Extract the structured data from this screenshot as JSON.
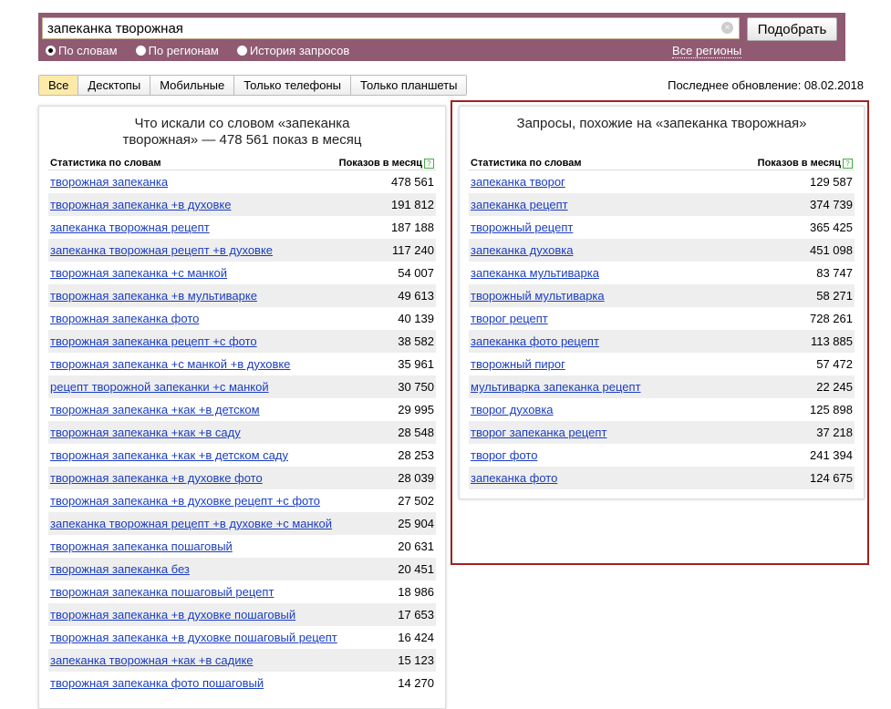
{
  "search": {
    "value": "запеканка творожная",
    "button": "Подобрать",
    "modes": [
      "По словам",
      "По регионам",
      "История запросов"
    ],
    "selected_mode": 0,
    "regions": "Все регионы"
  },
  "tabs": [
    "Все",
    "Десктопы",
    "Мобильные",
    "Только телефоны",
    "Только планшеты"
  ],
  "active_tab": 0,
  "updated": "Последнее обновление: 08.02.2018",
  "left": {
    "title1": "Что искали со словом «запеканка",
    "title2": "творожная» — 478 561 показ в месяц",
    "col1": "Статистика по словам",
    "col2": "Показов в месяц",
    "rows": [
      [
        "творожная запеканка",
        "478 561"
      ],
      [
        "творожная запеканка +в духовке",
        "191 812"
      ],
      [
        "запеканка творожная рецепт",
        "187 188"
      ],
      [
        "запеканка творожная рецепт +в духовке",
        "117 240"
      ],
      [
        "творожная запеканка +с манкой",
        "54 007"
      ],
      [
        "творожная запеканка +в мультиварке",
        "49 613"
      ],
      [
        "творожная запеканка фото",
        "40 139"
      ],
      [
        "творожная запеканка рецепт +с фото",
        "38 582"
      ],
      [
        "творожная запеканка +с манкой +в духовке",
        "35 961"
      ],
      [
        "рецепт творожной запеканки +с манкой",
        "30 750"
      ],
      [
        "творожная запеканка +как +в детском",
        "29 995"
      ],
      [
        "творожная запеканка +как +в саду",
        "28 548"
      ],
      [
        "творожная запеканка +как +в детском саду",
        "28 253"
      ],
      [
        "творожная запеканка +в духовке фото",
        "28 039"
      ],
      [
        "творожная запеканка +в духовке рецепт +с фото",
        "27 502"
      ],
      [
        "запеканка творожная рецепт +в духовке +с манкой",
        "25 904"
      ],
      [
        "творожная запеканка пошаговый",
        "20 631"
      ],
      [
        "творожная запеканка без",
        "20 451"
      ],
      [
        "творожная запеканка пошаговый рецепт",
        "18 986"
      ],
      [
        "творожная запеканка +в духовке пошаговый",
        "17 653"
      ],
      [
        "творожная запеканка +в духовке пошаговый рецепт",
        "16 424"
      ],
      [
        "запеканка творожная +как +в садике",
        "15 123"
      ],
      [
        "творожная запеканка фото пошаговый",
        "14 270"
      ]
    ]
  },
  "right": {
    "title": "Запросы, похожие на «запеканка творожная»",
    "col1": "Статистика по словам",
    "col2": "Показов в месяц",
    "rows": [
      [
        "запеканка творог",
        "129 587"
      ],
      [
        "запеканка рецепт",
        "374 739"
      ],
      [
        "творожный рецепт",
        "365 425"
      ],
      [
        "запеканка духовка",
        "451 098"
      ],
      [
        "запеканка мультиварка",
        "83 747"
      ],
      [
        "творожный мультиварка",
        "58 271"
      ],
      [
        "творог рецепт",
        "728 261"
      ],
      [
        "запеканка фото рецепт",
        "113 885"
      ],
      [
        "творожный пирог",
        "57 472"
      ],
      [
        "мультиварка запеканка рецепт",
        "22 245"
      ],
      [
        "творог духовка",
        "125 898"
      ],
      [
        "творог запеканка рецепт",
        "37 218"
      ],
      [
        "творог фото",
        "241 394"
      ],
      [
        "запеканка фото",
        "124 675"
      ]
    ]
  }
}
